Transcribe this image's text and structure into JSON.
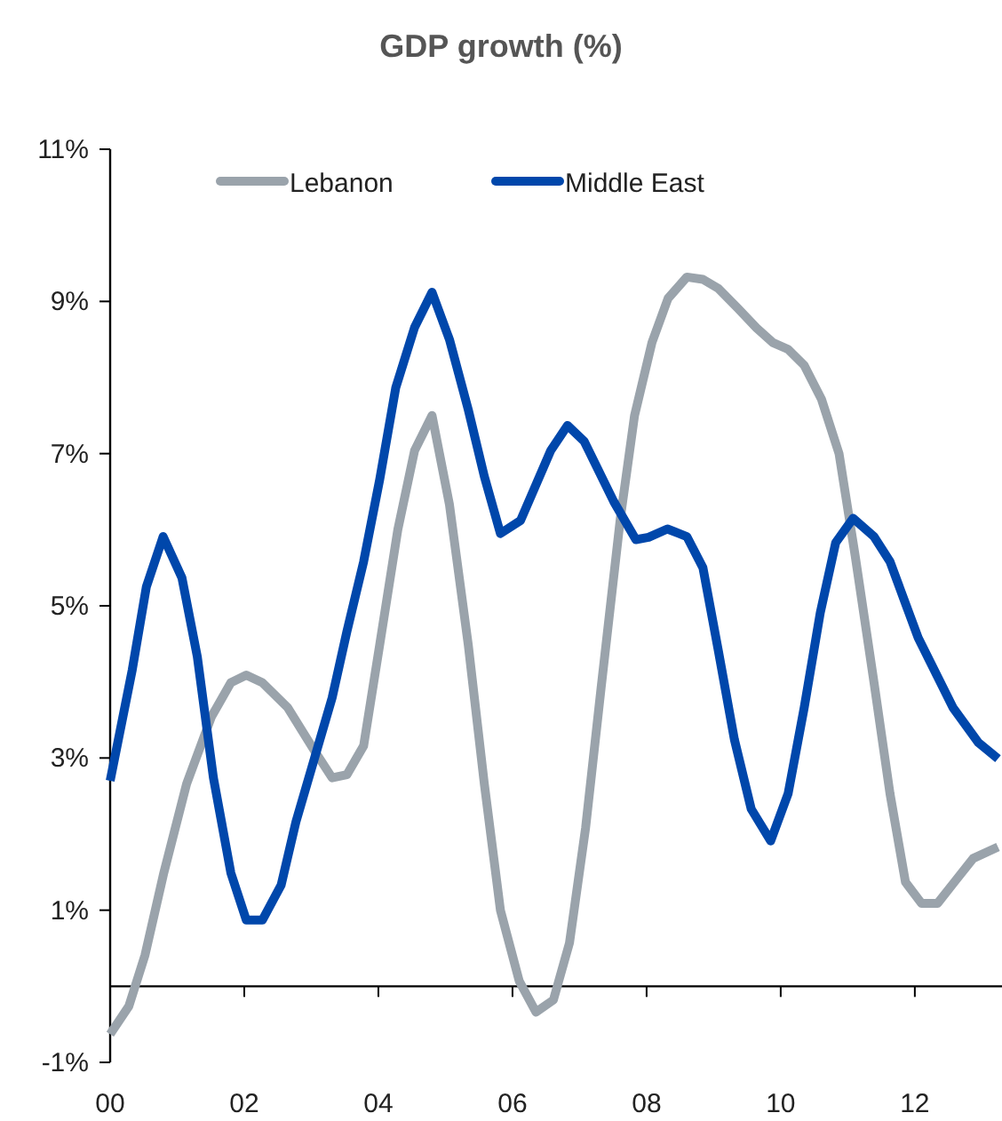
{
  "chart_data": {
    "type": "line",
    "title": "GDP growth (%)",
    "xlim": [
      2000,
      2013.3
    ],
    "xticks": [
      {
        "value": 2000,
        "label": "00"
      },
      {
        "value": 2002,
        "label": "02"
      },
      {
        "value": 2004,
        "label": "04"
      },
      {
        "value": 2006,
        "label": "06"
      },
      {
        "value": 2008,
        "label": "08"
      },
      {
        "value": 2010,
        "label": "10"
      },
      {
        "value": 2012,
        "label": "12"
      }
    ],
    "ylim": [
      -1,
      11
    ],
    "yticks": [
      {
        "value": -1,
        "label": "-1%"
      },
      {
        "value": 1,
        "label": "1%"
      },
      {
        "value": 3,
        "label": "3%"
      },
      {
        "value": 5,
        "label": "5%"
      },
      {
        "value": 7,
        "label": "7%"
      },
      {
        "value": 9,
        "label": "9%"
      },
      {
        "value": 11,
        "label": "11%"
      }
    ],
    "grid": false,
    "legend": "top",
    "marker": "none",
    "line_style": "solid",
    "series": [
      {
        "name": "Lebanon",
        "color": "#9aa3ab",
        "x": [
          2000,
          2000.28,
          2000.52,
          2000.8,
          2001.14,
          2001.51,
          2001.8,
          2002.03,
          2002.27,
          2002.65,
          2003.03,
          2003.31,
          2003.53,
          2003.78,
          2004.02,
          2004.29,
          2004.54,
          2004.8,
          2005.06,
          2005.34,
          2005.58,
          2005.82,
          2006.1,
          2006.35,
          2006.61,
          2006.85,
          2007.09,
          2007.32,
          2007.61,
          2007.82,
          2008.08,
          2008.32,
          2008.6,
          2008.84,
          2009.07,
          2009.36,
          2009.64,
          2009.88,
          2010.11,
          2010.35,
          2010.61,
          2010.87,
          2011.11,
          2011.39,
          2011.63,
          2011.86,
          2012.1,
          2012.34,
          2012.59,
          2012.87,
          2013.24
        ],
        "values": [
          -0.63,
          -0.26,
          0.41,
          1.49,
          2.66,
          3.54,
          3.99,
          4.09,
          3.99,
          3.66,
          3.12,
          2.74,
          2.78,
          3.16,
          4.49,
          6.0,
          7.04,
          7.5,
          6.33,
          4.49,
          2.66,
          1.0,
          0.07,
          -0.34,
          -0.18,
          0.57,
          2.08,
          3.91,
          6.16,
          7.5,
          8.46,
          9.04,
          9.32,
          9.29,
          9.17,
          8.91,
          8.65,
          8.46,
          8.37,
          8.16,
          7.71,
          7.0,
          5.66,
          4.0,
          2.53,
          1.37,
          1.09,
          1.09,
          1.37,
          1.68,
          1.83
        ]
      },
      {
        "name": "Middle East",
        "color": "#0047ab",
        "x": [
          2000,
          2000.33,
          2000.54,
          2000.79,
          2001.07,
          2001.3,
          2001.54,
          2001.8,
          2002.03,
          2002.27,
          2002.55,
          2002.77,
          2003.31,
          2003.53,
          2003.78,
          2004.02,
          2004.26,
          2004.54,
          2004.8,
          2005.06,
          2005.34,
          2005.58,
          2005.82,
          2006.12,
          2006.57,
          2006.82,
          2007.07,
          2007.51,
          2007.84,
          2008.03,
          2008.31,
          2008.6,
          2008.84,
          2009.07,
          2009.31,
          2009.56,
          2009.85,
          2010.11,
          2010.35,
          2010.59,
          2010.82,
          2011.08,
          2011.39,
          2011.63,
          2012.05,
          2012.57,
          2012.95,
          2013.24
        ],
        "values": [
          2.7,
          4.16,
          5.25,
          5.91,
          5.37,
          4.33,
          2.74,
          1.49,
          0.87,
          0.87,
          1.33,
          2.16,
          3.79,
          4.66,
          5.58,
          6.66,
          7.87,
          8.66,
          9.12,
          8.5,
          7.58,
          6.7,
          5.95,
          6.12,
          7.04,
          7.37,
          7.16,
          6.37,
          5.87,
          5.9,
          6.01,
          5.91,
          5.5,
          4.41,
          3.24,
          2.33,
          1.91,
          2.53,
          3.66,
          4.91,
          5.83,
          6.15,
          5.91,
          5.58,
          4.58,
          3.66,
          3.2,
          2.99
        ]
      }
    ]
  }
}
